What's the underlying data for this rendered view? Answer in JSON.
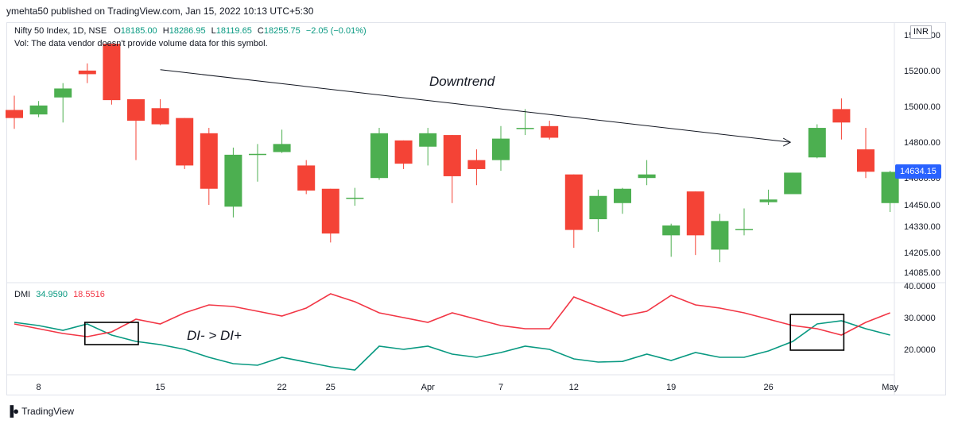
{
  "header": {
    "publisher_text": "ymehta50 published on TradingView.com, Jan 15, 2022 10:13 UTC+5:30"
  },
  "legend": {
    "symbol": "Nifty 50 Index, 1D, NSE",
    "o_label": "O",
    "o_value": "18185.00",
    "h_label": "H",
    "h_value": "18286.95",
    "l_label": "L",
    "l_value": "18119.65",
    "c_label": "C",
    "c_value": "18255.75",
    "change": "−2.05 (−0.01%)",
    "vol_text": "Vol: The data vendor doesn't provide volume data for this symbol."
  },
  "dmi_legend": {
    "name": "DMI",
    "di_minus": "34.9590",
    "di_plus": "18.5516"
  },
  "currency": "INR",
  "last_price": "14634.15",
  "footer": {
    "brand": "TradingView"
  },
  "colors": {
    "up": "#4caf50",
    "down": "#f44336",
    "di_minus": "#089981",
    "di_plus": "#f23645",
    "price_tag": "#2962ff"
  },
  "chart_data": [
    {
      "type": "candlestick",
      "title": "Nifty 50 Index, 1D, NSE",
      "ylim": [
        14085,
        15400
      ],
      "y_ticks": [
        "15400.00",
        "15200.00",
        "15000.00",
        "14800.00",
        "14600.00",
        "14450.00",
        "14330.00",
        "14205.00",
        "14085.00"
      ],
      "x_ticks": [
        {
          "label": "8",
          "index": 1
        },
        {
          "label": "15",
          "index": 6
        },
        {
          "label": "22",
          "index": 11
        },
        {
          "label": "25",
          "index": 13
        },
        {
          "label": "Apr",
          "index": 17
        },
        {
          "label": "7",
          "index": 20
        },
        {
          "label": "12",
          "index": 23
        },
        {
          "label": "19",
          "index": 27
        },
        {
          "label": "26",
          "index": 31
        },
        {
          "label": "May",
          "index": 36
        }
      ],
      "candles": [
        {
          "o": 14980,
          "h": 15060,
          "l": 14875,
          "c": 14935
        },
        {
          "o": 14955,
          "h": 15030,
          "l": 14940,
          "c": 15005
        },
        {
          "o": 15050,
          "h": 15130,
          "l": 14910,
          "c": 15100
        },
        {
          "o": 15200,
          "h": 15240,
          "l": 15130,
          "c": 15180
        },
        {
          "o": 15350,
          "h": 15350,
          "l": 15010,
          "c": 15035
        },
        {
          "o": 15040,
          "h": 15040,
          "l": 14700,
          "c": 14920
        },
        {
          "o": 14990,
          "h": 15040,
          "l": 14895,
          "c": 14900
        },
        {
          "o": 14935,
          "h": 14935,
          "l": 14650,
          "c": 14670
        },
        {
          "o": 14850,
          "h": 14880,
          "l": 14450,
          "c": 14540
        },
        {
          "o": 14440,
          "h": 14770,
          "l": 14380,
          "c": 14730
        },
        {
          "o": 14735,
          "h": 14790,
          "l": 14580,
          "c": 14735
        },
        {
          "o": 14745,
          "h": 14870,
          "l": 14740,
          "c": 14790
        },
        {
          "o": 14670,
          "h": 14700,
          "l": 14510,
          "c": 14530
        },
        {
          "o": 14540,
          "h": 14540,
          "l": 14240,
          "c": 14290
        },
        {
          "o": 14490,
          "h": 14545,
          "l": 14445,
          "c": 14490
        },
        {
          "o": 14600,
          "h": 14880,
          "l": 14590,
          "c": 14850
        },
        {
          "o": 14810,
          "h": 14810,
          "l": 14650,
          "c": 14680
        },
        {
          "o": 14775,
          "h": 14880,
          "l": 14670,
          "c": 14850
        },
        {
          "o": 14840,
          "h": 14840,
          "l": 14460,
          "c": 14610
        },
        {
          "o": 14700,
          "h": 14760,
          "l": 14560,
          "c": 14650
        },
        {
          "o": 14700,
          "h": 14890,
          "l": 14640,
          "c": 14820
        },
        {
          "o": 14880,
          "h": 14985,
          "l": 14840,
          "c": 14880
        },
        {
          "o": 14890,
          "h": 14920,
          "l": 14815,
          "c": 14825
        },
        {
          "o": 14620,
          "h": 14620,
          "l": 14210,
          "c": 14310
        },
        {
          "o": 14370,
          "h": 14535,
          "l": 14300,
          "c": 14500
        },
        {
          "o": 14460,
          "h": 14545,
          "l": 14400,
          "c": 14540
        },
        {
          "o": 14600,
          "h": 14700,
          "l": 14560,
          "c": 14620
        },
        {
          "o": 14280,
          "h": 14345,
          "l": 14160,
          "c": 14335
        },
        {
          "o": 14525,
          "h": 14525,
          "l": 14170,
          "c": 14280
        },
        {
          "o": 14200,
          "h": 14400,
          "l": 14130,
          "c": 14360
        },
        {
          "o": 14310,
          "h": 14430,
          "l": 14280,
          "c": 14315
        },
        {
          "o": 14465,
          "h": 14535,
          "l": 14450,
          "c": 14480
        },
        {
          "o": 14510,
          "h": 14630,
          "l": 14510,
          "c": 14630
        },
        {
          "o": 14715,
          "h": 14900,
          "l": 14710,
          "c": 14880
        },
        {
          "o": 14985,
          "h": 15045,
          "l": 14815,
          "c": 14910
        },
        {
          "o": 14760,
          "h": 14880,
          "l": 14600,
          "c": 14635
        },
        {
          "o": 14460,
          "h": 14640,
          "l": 14410,
          "c": 14634.15
        }
      ],
      "annotations": [
        {
          "type": "trend_arrow",
          "text": "Downtrend",
          "from": {
            "index": 6,
            "price": 15205
          },
          "to": {
            "index": 32,
            "price": 14800
          }
        }
      ]
    },
    {
      "type": "line",
      "title": "DMI",
      "ylim": [
        15,
        43
      ],
      "y_ticks": [
        "40.0000",
        "30.0000",
        "20.0000"
      ],
      "series": [
        {
          "name": "DI-",
          "color": "#089981",
          "values": [
            28.5,
            27.5,
            26,
            28,
            24.5,
            22.5,
            21.5,
            20,
            17.5,
            15.5,
            15,
            17.5,
            16,
            14.5,
            13.5,
            21,
            20,
            21,
            18.5,
            17.5,
            19,
            21,
            20,
            17,
            16,
            16.2,
            18.5,
            16.5,
            19,
            17.5,
            17.5,
            19.5,
            22.5,
            28,
            29,
            26.5,
            24.5
          ]
        },
        {
          "name": "DI+",
          "color": "#f23645",
          "values": [
            28,
            26.5,
            25,
            24,
            25.5,
            29.5,
            28,
            31.5,
            34,
            33.5,
            32,
            30.5,
            33,
            37.5,
            35,
            31.5,
            30,
            28.5,
            31.5,
            29.5,
            27.5,
            26.5,
            26.5,
            36.5,
            33.5,
            30.5,
            32,
            37,
            34,
            33,
            31.5,
            29.5,
            27.5,
            26.5,
            24.5,
            28.5,
            31.5
          ]
        }
      ],
      "annotations": [
        {
          "type": "box",
          "text": "DI- > DI+",
          "from_index": 3,
          "to_index": 5
        },
        {
          "type": "box",
          "from_index": 32,
          "to_index": 34
        }
      ]
    }
  ]
}
